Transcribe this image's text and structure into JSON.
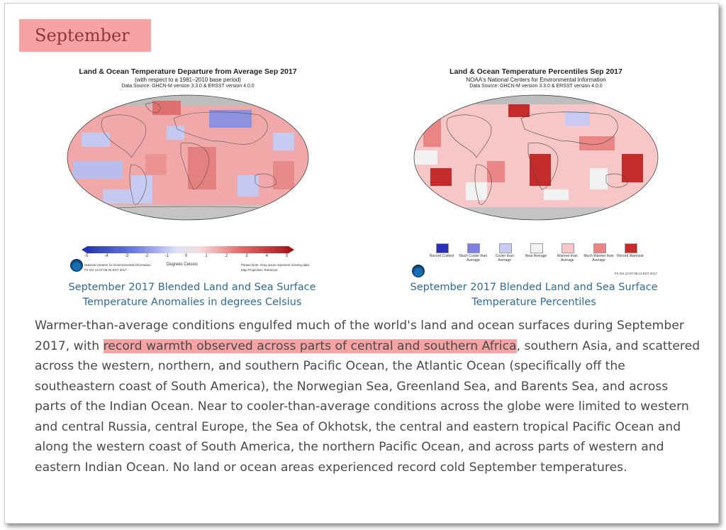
{
  "heading": "September",
  "left_map": {
    "title": "Land & Ocean Temperature Departure from Average Sep 2017",
    "subtitle": "(with respect to a 1981–2010 base period)",
    "source": "Data Source: GHCN-M version 3.3.0 & ERSST version 4.0.0",
    "scale_ticks": [
      "-5",
      "-4",
      "-3",
      "-2",
      "-1",
      "0",
      "1",
      "2",
      "3",
      "4",
      "5"
    ],
    "scale_label": "Degrees Celsius",
    "credit": "National Centers for Environmental Information",
    "date": "Fri Oct 13 07:06:05 EST 2017",
    "note1": "Please Note: Gray areas represent missing data",
    "note2": "Map Projection: Robinson",
    "caption_line1": "September 2017 Blended Land and Sea Surface",
    "caption_line2": "Temperature Anomalies in degrees Celsius"
  },
  "right_map": {
    "title": "Land & Ocean Temperature Percentiles Sep 2017",
    "subtitle": "NOAA's National Centers for Environmental Information",
    "source": "Data Source: GHCN-M version 3.3.0 & ERSST version 4.0.0",
    "legend": [
      {
        "label": "Record Coldest",
        "color": "#2b2fb8"
      },
      {
        "label": "Much Cooler than Average",
        "color": "#7d80e0"
      },
      {
        "label": "Cooler than Average",
        "color": "#c9cbf4"
      },
      {
        "label": "Near Average",
        "color": "#f2f2f2"
      },
      {
        "label": "Warmer than Average",
        "color": "#f7c7c7"
      },
      {
        "label": "Much Warmer than Average",
        "color": "#e98585"
      },
      {
        "label": "Record Warmest",
        "color": "#c52b2b"
      }
    ],
    "date": "Fri Oct 13 07:06:13 EST 2017",
    "caption_line1": "September 2017 Blended Land and Sea Surface",
    "caption_line2": "Temperature Percentiles"
  },
  "paragraph": {
    "before": "Warmer-than-average conditions engulfed much of the world's land and ocean surfaces during September 2017, with ",
    "highlight": "record warmth observed across parts of central and southern Africa",
    "after": ", southern Asia, and scattered across the western, northern, and southern Pacific Ocean, the Atlantic Ocean (specifically off the southeastern coast of South America), the Norwegian Sea, Greenland Sea, and Barents Sea, and across parts of the Indian Ocean. Near to cooler-than-average conditions across the globe were limited to western and central Russia, central Europe, the Sea of Okhotsk, the central and eastern tropical Pacific Ocean and along the western coast of South America, the northern Pacific Ocean, and across parts of western and eastern Indian Ocean. No land or ocean areas experienced record cold September temperatures."
  },
  "colors": {
    "highlight": "#f6a3a3",
    "caption": "#2f6a98",
    "body_text": "#4a4a4a"
  }
}
